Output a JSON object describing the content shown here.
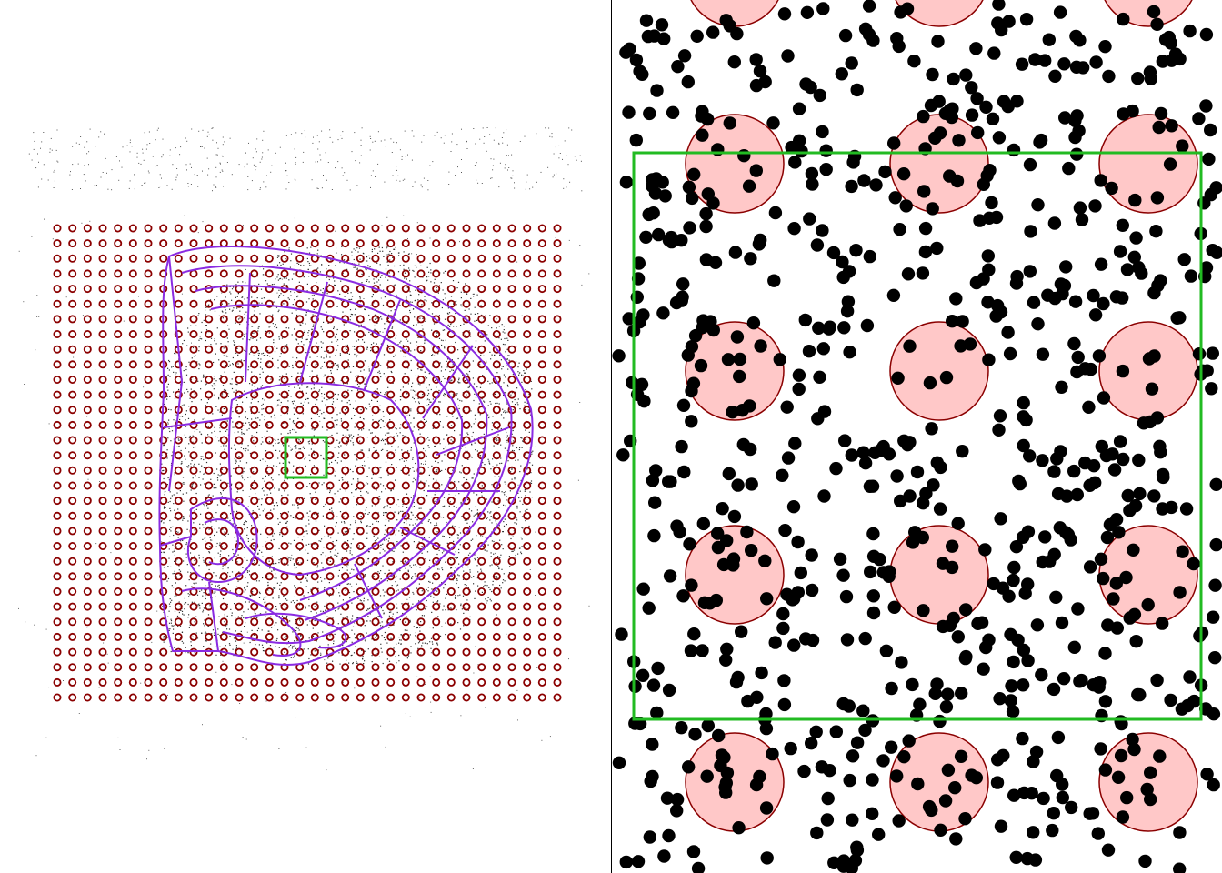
{
  "figure": {
    "left_panel": {
      "description_id": "tissue-section-overview",
      "spot_grid": {
        "columns": 34,
        "rows": 32,
        "spot_stroke": "#8b0000"
      },
      "region_outline_color": "#8a2be2",
      "cell_point_color": "#333333",
      "inset_box_color": "#22bb22"
    },
    "right_panel": {
      "description_id": "zoomed-inset",
      "spot_fill": "#ffc8c8",
      "spot_stroke": "#8b0000",
      "cell_color": "#000000",
      "inset_box_color": "#22bb22",
      "spot_grid": {
        "columns": 3,
        "rows": 5
      }
    }
  }
}
